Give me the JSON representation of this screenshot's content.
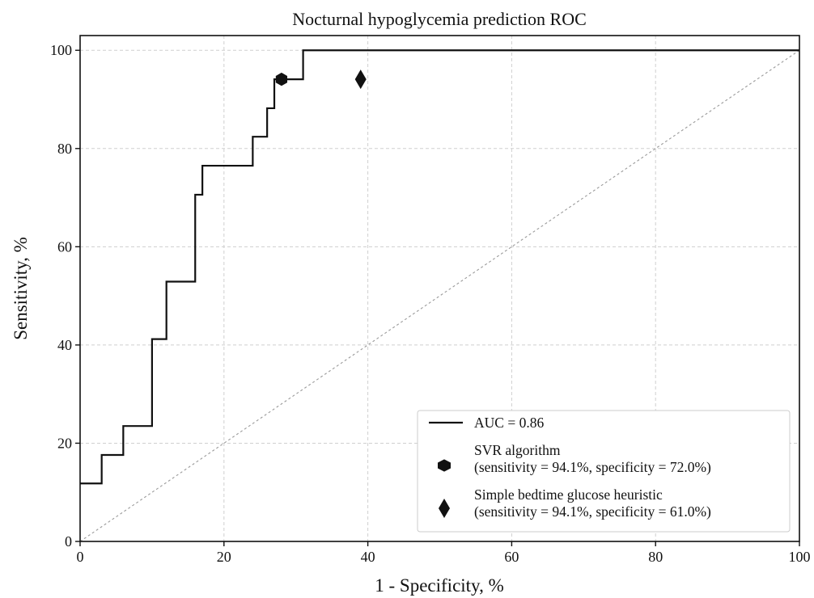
{
  "chart_data": {
    "type": "line",
    "title": "Nocturnal hypoglycemia prediction ROC",
    "xlabel": "1 - Specificity, %",
    "ylabel": "Sensitivity, %",
    "xlim": [
      0,
      100
    ],
    "ylim": [
      0,
      103
    ],
    "x_ticks": [
      0,
      20,
      40,
      60,
      80,
      100
    ],
    "y_ticks": [
      0,
      20,
      40,
      60,
      80,
      100
    ],
    "grid": true,
    "legend_position": "bottom-right",
    "series": [
      {
        "name": "AUC = 0.86",
        "kind": "step-line",
        "color": "#111111",
        "x": [
          0,
          3,
          3,
          6,
          6,
          10,
          10,
          12,
          12,
          16,
          16,
          17,
          17,
          24,
          24,
          26,
          26,
          27,
          27,
          28,
          28,
          31,
          31,
          100
        ],
        "y": [
          11.8,
          11.8,
          17.6,
          17.6,
          23.5,
          23.5,
          41.2,
          41.2,
          52.9,
          52.9,
          70.6,
          70.6,
          76.5,
          76.5,
          82.4,
          82.4,
          88.2,
          88.2,
          94.1,
          94.1,
          94.1,
          94.1,
          100,
          100
        ]
      },
      {
        "name": "chance",
        "kind": "diagonal",
        "color": "#9a9a9a",
        "x": [
          0,
          100
        ],
        "y": [
          0,
          100
        ]
      }
    ],
    "points": [
      {
        "name": "SVR algorithm",
        "detail": "(sensitivity = 94.1%, specificity = 72.0%)",
        "marker": "hexagon",
        "x": 28,
        "y": 94.1
      },
      {
        "name": "Simple bedtime glucose heuristic",
        "detail": "(sensitivity = 94.1%, specificity = 61.0%)",
        "marker": "thin-diamond",
        "x": 39,
        "y": 94.1
      }
    ]
  }
}
